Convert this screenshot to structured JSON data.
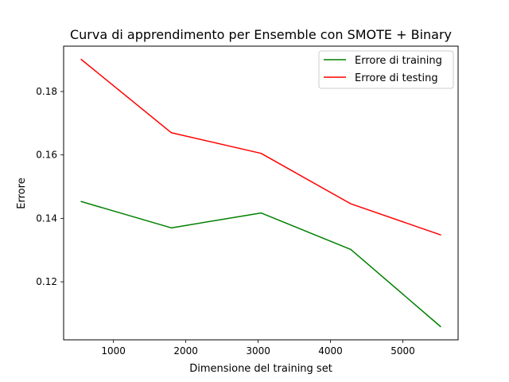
{
  "chart_data": {
    "type": "line",
    "title": "Curva di apprendimento per Ensemble con SMOTE + Binary",
    "xlabel": "Dimensione del training set",
    "ylabel": "Errore",
    "x": [
      555,
      1800,
      3040,
      4280,
      5520
    ],
    "series": [
      {
        "name": "Errore di training",
        "color": "#008000",
        "values": [
          0.1453,
          0.137,
          0.1417,
          0.1302,
          0.1059
        ]
      },
      {
        "name": "Errore di testing",
        "color": "#ff0000",
        "values": [
          0.1901,
          0.167,
          0.1605,
          0.1446,
          0.1348
        ]
      }
    ],
    "xlim": [
      311,
      5764
    ],
    "ylim": [
      0.1017,
      0.1943
    ],
    "x_ticks": [
      1000,
      2000,
      3000,
      4000,
      5000
    ],
    "y_ticks": [
      0.12,
      0.14,
      0.16,
      0.18
    ],
    "x_tick_labels": [
      "1000",
      "2000",
      "3000",
      "4000",
      "5000"
    ],
    "y_tick_labels": [
      "0.12",
      "0.14",
      "0.16",
      "0.18"
    ],
    "legend_position": "top-right",
    "grid": false
  }
}
